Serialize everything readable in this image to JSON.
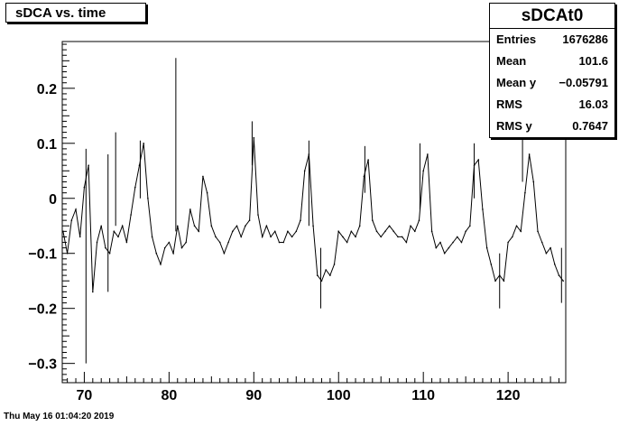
{
  "chart_data": {
    "type": "line",
    "title": "sDCA vs. time",
    "xlim": [
      67.4,
      126.8
    ],
    "ylim": [
      -0.335,
      0.285
    ],
    "x_ticks": [
      70,
      80,
      90,
      100,
      110,
      120
    ],
    "x_tick_labels": [
      "70",
      "80",
      "90",
      "100",
      "110",
      "120"
    ],
    "y_ticks": [
      -0.3,
      -0.2,
      -0.1,
      0,
      0.1,
      0.2
    ],
    "y_tick_labels": [
      "−0.3",
      "−0.2",
      "−0.1",
      "0",
      "0.1",
      "0.2"
    ],
    "grid": false,
    "series": [
      {
        "x": [
          67.5,
          68.0,
          68.5,
          69.0,
          69.5,
          70.0,
          70.5,
          71.0,
          71.5,
          72.0,
          72.5,
          73.0,
          73.5,
          74.0,
          74.5,
          75.0,
          75.5,
          76.0,
          76.5,
          77.0,
          77.5,
          78.0,
          78.5,
          79.0,
          79.5,
          80.0,
          80.5,
          81.0,
          81.5,
          82.0,
          82.5,
          83.0,
          83.5,
          84.0,
          84.5,
          85.0,
          85.5,
          86.0,
          86.5,
          87.0,
          87.5,
          88.0,
          88.5,
          89.0,
          89.5,
          90.0,
          90.5,
          91.0,
          91.5,
          92.0,
          92.5,
          93.0,
          93.5,
          94.0,
          94.5,
          95.0,
          95.5,
          96.0,
          96.5,
          97.0,
          97.5,
          98.0,
          98.5,
          99.0,
          99.5,
          100.0,
          100.5,
          101.0,
          101.5,
          102.0,
          102.5,
          103.0,
          103.5,
          104.0,
          104.5,
          105.0,
          105.5,
          106.0,
          106.5,
          107.0,
          107.5,
          108.0,
          108.5,
          109.0,
          109.5,
          110.0,
          110.5,
          111.0,
          111.5,
          112.0,
          112.5,
          113.0,
          113.5,
          114.0,
          114.5,
          115.0,
          115.5,
          116.0,
          116.5,
          117.0,
          117.5,
          118.0,
          118.5,
          119.0,
          119.5,
          120.0,
          120.5,
          121.0,
          121.5,
          122.0,
          122.5,
          123.0,
          123.5,
          124.0,
          124.5,
          125.0,
          125.5,
          126.0,
          126.5
        ],
        "y": [
          -0.06,
          -0.1,
          -0.04,
          -0.02,
          -0.07,
          0.02,
          0.06,
          -0.17,
          -0.08,
          -0.05,
          -0.09,
          -0.1,
          -0.06,
          -0.07,
          -0.05,
          -0.08,
          -0.03,
          0.02,
          0.06,
          0.1,
          0.0,
          -0.07,
          -0.1,
          -0.12,
          -0.09,
          -0.08,
          -0.1,
          -0.05,
          -0.09,
          -0.08,
          -0.02,
          -0.05,
          -0.06,
          0.04,
          0.01,
          -0.05,
          -0.07,
          -0.08,
          -0.1,
          -0.08,
          -0.06,
          -0.05,
          -0.07,
          -0.05,
          -0.04,
          0.11,
          -0.03,
          -0.07,
          -0.05,
          -0.07,
          -0.06,
          -0.08,
          -0.08,
          -0.06,
          -0.07,
          -0.06,
          -0.04,
          0.05,
          0.08,
          -0.05,
          -0.14,
          -0.15,
          -0.13,
          -0.14,
          -0.12,
          -0.06,
          -0.07,
          -0.08,
          -0.06,
          -0.07,
          -0.05,
          0.04,
          0.07,
          -0.04,
          -0.06,
          -0.07,
          -0.06,
          -0.05,
          -0.06,
          -0.07,
          -0.07,
          -0.08,
          -0.05,
          -0.06,
          -0.04,
          0.05,
          0.08,
          -0.06,
          -0.09,
          -0.08,
          -0.1,
          -0.09,
          -0.08,
          -0.07,
          -0.08,
          -0.06,
          -0.05,
          0.06,
          0.07,
          -0.02,
          -0.09,
          -0.12,
          -0.15,
          -0.14,
          -0.15,
          -0.08,
          -0.07,
          -0.05,
          -0.06,
          0.01,
          0.08,
          0.03,
          -0.06,
          -0.08,
          -0.1,
          -0.09,
          -0.12,
          -0.14,
          -0.15
        ]
      }
    ],
    "spikes": [
      {
        "x": 70.2,
        "y_top": 0.09,
        "y_bottom": -0.3
      },
      {
        "x": 72.8,
        "y_top": 0.08,
        "y_bottom": -0.17
      },
      {
        "x": 73.7,
        "y_top": 0.12,
        "y_bottom": -0.05
      },
      {
        "x": 76.6,
        "y_top": 0.105,
        "y_bottom": 0.0
      },
      {
        "x": 80.8,
        "y_top": 0.255,
        "y_bottom": -0.06
      },
      {
        "x": 89.8,
        "y_top": 0.14,
        "y_bottom": 0.06
      },
      {
        "x": 96.5,
        "y_top": 0.105,
        "y_bottom": -0.05
      },
      {
        "x": 97.9,
        "y_top": -0.09,
        "y_bottom": -0.2
      },
      {
        "x": 103.1,
        "y_top": 0.095,
        "y_bottom": 0.01
      },
      {
        "x": 109.6,
        "y_top": 0.1,
        "y_bottom": -0.02
      },
      {
        "x": 116.0,
        "y_top": 0.1,
        "y_bottom": 0.0
      },
      {
        "x": 119.0,
        "y_top": -0.1,
        "y_bottom": -0.2
      },
      {
        "x": 121.7,
        "y_top": 0.11,
        "y_bottom": 0.03
      },
      {
        "x": 126.3,
        "y_top": -0.09,
        "y_bottom": -0.19
      }
    ]
  },
  "stats": {
    "title": "sDCAt0",
    "rows": [
      {
        "label": "Entries",
        "value": "1676286"
      },
      {
        "label": "Mean",
        "value": "101.6"
      },
      {
        "label": "Mean y",
        "value": "−0.05791"
      },
      {
        "label": "RMS",
        "value": "16.03"
      },
      {
        "label": "RMS y",
        "value": "0.7647"
      }
    ]
  },
  "timestamp": "Thu May 16 01:04:20 2019"
}
